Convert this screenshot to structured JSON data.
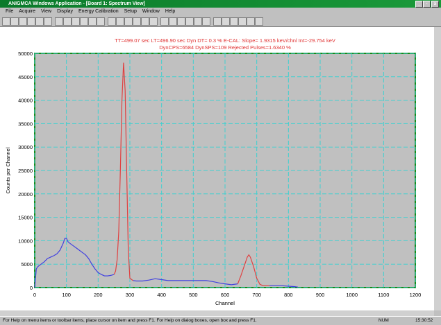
{
  "window": {
    "title": "ANIGMCA Windows Application - [Board 1: Spectrum View]",
    "menu": [
      "File",
      "Acquire",
      "View",
      "Display",
      "Energy Calibration",
      "Setup",
      "Window",
      "Help"
    ]
  },
  "chart_data": {
    "type": "line",
    "header": [
      "TT=499.07 sec   LT=496.90 sec   Dyn DT=  0.3 %    E-CAL:  Slope= 1.9315 keV/chnl   Int=-29.754 keV",
      "DynCPS=6584   DynSPS=109   Rejected Pulses=1.6340 %"
    ],
    "xlabel": "Channel",
    "ylabel": "Counts per Channel",
    "x": [
      0,
      5,
      10,
      20,
      30,
      40,
      50,
      60,
      70,
      80,
      90,
      95,
      100,
      105,
      110,
      120,
      130,
      140,
      150,
      160,
      170,
      180,
      190,
      200,
      210,
      220,
      230,
      240,
      250,
      255,
      260,
      265,
      270,
      275,
      280,
      285,
      290,
      295,
      300,
      310,
      320,
      340,
      360,
      380,
      400,
      420,
      440,
      460,
      480,
      500,
      520,
      540,
      560,
      580,
      600,
      620,
      640,
      650,
      660,
      670,
      675,
      680,
      690,
      700,
      710,
      720,
      740,
      760,
      780,
      800,
      820,
      830
    ],
    "series": [
      {
        "color": "#4040e0",
        "values": [
          0,
          4000,
          4500,
          5000,
          5500,
          6200,
          6500,
          6800,
          7200,
          8000,
          9500,
          10500,
          10500,
          9800,
          9500,
          9000,
          8500,
          8000,
          7500,
          7000,
          6200,
          5000,
          4000,
          3200,
          2800,
          2500,
          2500,
          2600,
          2800,
          null,
          null,
          null,
          null,
          null,
          null,
          null,
          null,
          null,
          null,
          1500,
          1400,
          1400,
          1600,
          1900,
          1700,
          1500,
          1500,
          1500,
          1500,
          1500,
          1500,
          1500,
          1300,
          1000,
          800,
          600,
          800,
          null,
          null,
          null,
          null,
          null,
          null,
          null,
          null,
          null,
          400,
          400,
          400,
          300,
          200,
          100
        ]
      },
      {
        "color": "#e04040",
        "values": [
          null,
          null,
          null,
          null,
          null,
          null,
          null,
          null,
          null,
          null,
          null,
          null,
          null,
          null,
          null,
          null,
          null,
          null,
          null,
          null,
          null,
          null,
          null,
          null,
          null,
          null,
          null,
          null,
          2800,
          3500,
          6000,
          12000,
          25000,
          40000,
          48000,
          42000,
          25000,
          8000,
          2000,
          1500,
          null,
          null,
          null,
          null,
          null,
          null,
          null,
          null,
          null,
          null,
          null,
          null,
          null,
          null,
          null,
          null,
          800,
          2500,
          4500,
          6500,
          7000,
          6500,
          4500,
          2000,
          700,
          400,
          400,
          null,
          null,
          null,
          null,
          null
        ]
      }
    ],
    "xlim": [
      0,
      1200
    ],
    "xticks": [
      0,
      100,
      200,
      300,
      400,
      500,
      600,
      700,
      800,
      900,
      1000,
      1100,
      1200
    ],
    "ylim": [
      0,
      50000
    ],
    "yticks": [
      0,
      5000,
      10000,
      15000,
      20000,
      25000,
      30000,
      35000,
      40000,
      45000,
      50000
    ],
    "grid": true
  },
  "status_bar": {
    "text": "For Help on menu items or toolbar items, place cursor on item and press F1.  For Help on dialog boxes, open box and press F1.",
    "num": "NUM",
    "time": "15:30:52"
  }
}
